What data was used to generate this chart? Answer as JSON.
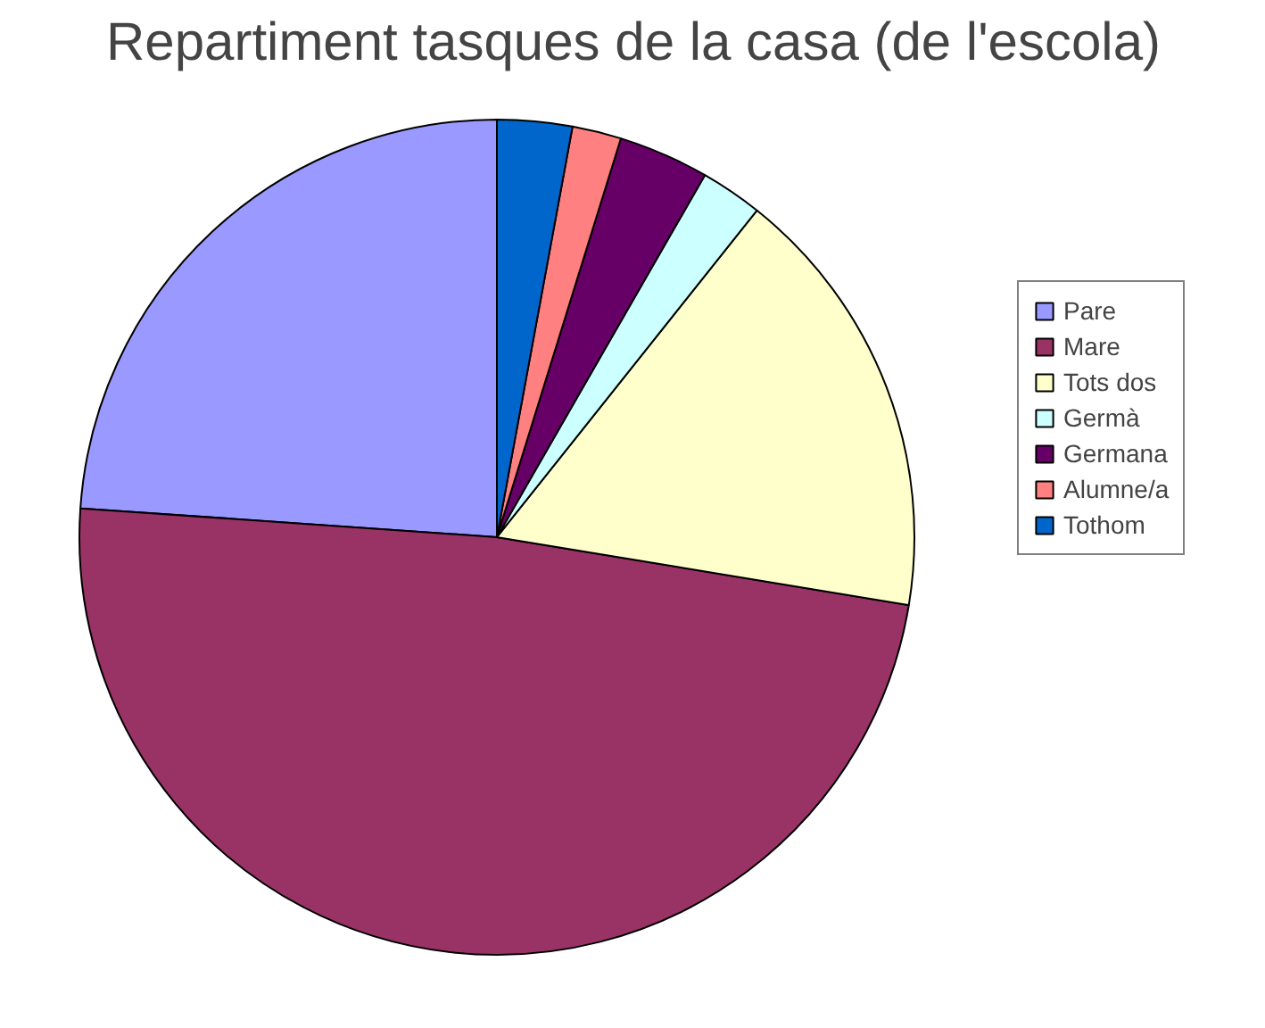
{
  "chart_data": {
    "type": "pie",
    "title": "Repartiment tasques de la casa (de l'escola)",
    "categories": [
      "Pare",
      "Mare",
      "Tots dos",
      "Germà",
      "Germana",
      "Alumne/a",
      "Tothom"
    ],
    "values": [
      23.9,
      48.5,
      16.9,
      2.4,
      3.5,
      1.9,
      2.9
    ],
    "colors": [
      "#9999ff",
      "#993366",
      "#ffffcc",
      "#ccffff",
      "#660066",
      "#ff8080",
      "#0066cc"
    ],
    "legend": "right"
  }
}
